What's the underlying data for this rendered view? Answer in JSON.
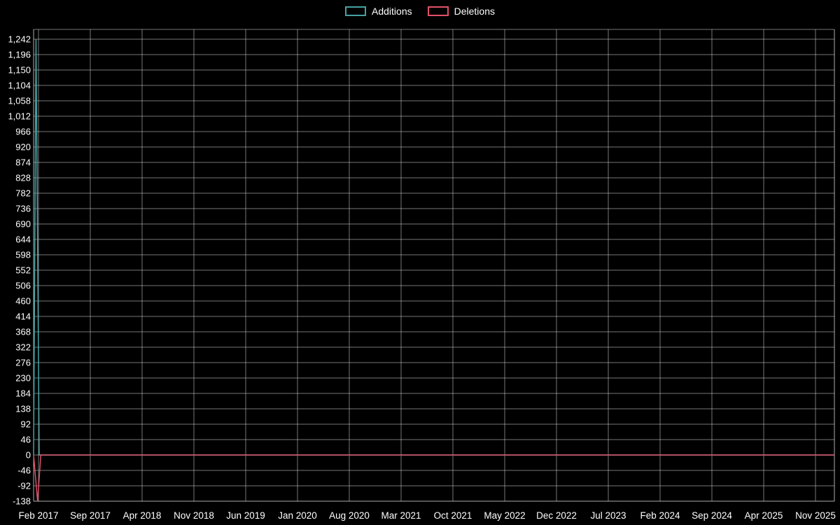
{
  "legend": {
    "items": [
      {
        "label": "Additions",
        "color": "#46a2a2"
      },
      {
        "label": "Deletions",
        "color": "#e0506a"
      }
    ]
  },
  "colors": {
    "background": "#000000",
    "grid": "#d8d8d8",
    "text": "#ffffff",
    "additions": "#46a2a2",
    "deletions": "#e0506a"
  },
  "chart_data": {
    "type": "line",
    "title": "",
    "xlabel": "",
    "ylabel": "",
    "grid": true,
    "legend_position": "top-center",
    "ylim": [
      -138,
      1242
    ],
    "y_tick_step": 46,
    "y_tick_values": [
      1242,
      1196,
      1150,
      1104,
      1058,
      1012,
      966,
      920,
      874,
      828,
      782,
      736,
      690,
      644,
      598,
      552,
      506,
      460,
      414,
      368,
      322,
      276,
      230,
      184,
      138,
      92,
      46,
      0,
      -46,
      -92,
      -138
    ],
    "x_tick_labels": [
      "Feb 2017",
      "Sep 2017",
      "Apr 2018",
      "Nov 2018",
      "Jun 2019",
      "Jan 2020",
      "Aug 2020",
      "Mar 2021",
      "Oct 2021",
      "May 2022",
      "Dec 2022",
      "Jul 2023",
      "Feb 2024",
      "Sep 2024",
      "Apr 2025",
      "Nov 2025"
    ],
    "series": [
      {
        "name": "Additions",
        "color": "#46a2a2",
        "points": [
          [
            0.0,
            0
          ],
          [
            0.003,
            1242
          ],
          [
            0.007,
            0
          ],
          [
            1.0,
            0
          ]
        ]
      },
      {
        "name": "Deletions",
        "color": "#e0506a",
        "points": [
          [
            0.0,
            0
          ],
          [
            0.005,
            -138
          ],
          [
            0.009,
            0
          ],
          [
            1.0,
            0
          ]
        ]
      }
    ]
  }
}
